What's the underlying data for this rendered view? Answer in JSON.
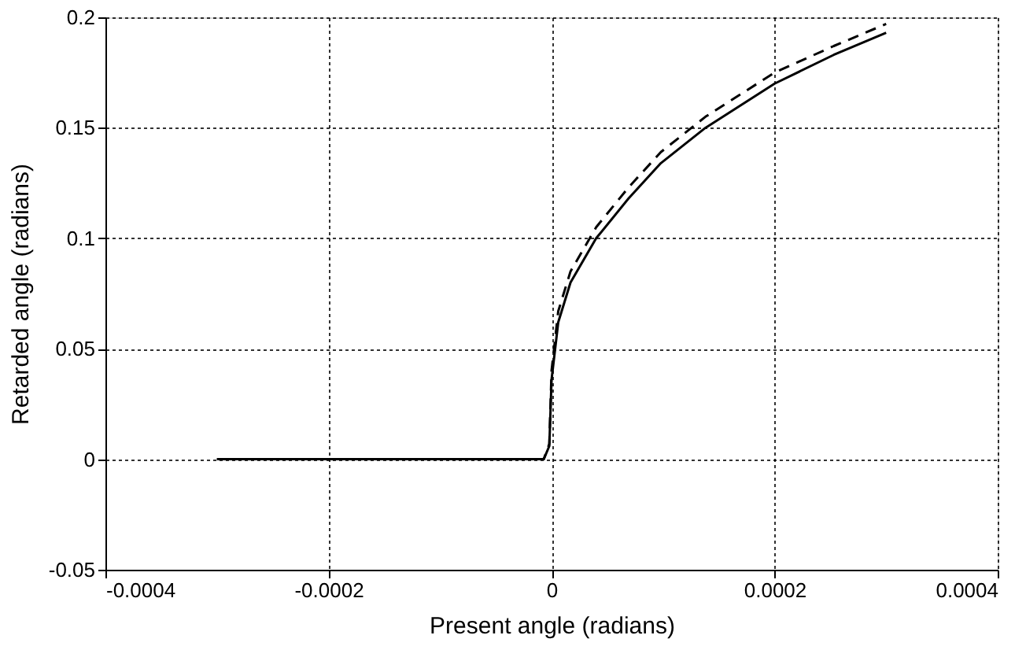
{
  "chart_data": {
    "type": "line",
    "xlabel": "Present angle (radians)",
    "ylabel": "Retarded angle (radians)",
    "xlim": [
      -0.0004,
      0.0004
    ],
    "xticks": [
      -0.0004,
      -0.0002,
      0,
      0.0002,
      0.0004
    ],
    "ylim": [
      -0.05,
      0.2
    ],
    "yticks": [
      -0.05,
      0,
      0.05,
      0.1,
      0.15,
      0.2
    ],
    "grid": true,
    "series": [
      {
        "color": "#000000",
        "line_style": "solid",
        "x": [
          -0.0003,
          -0.00015,
          -7e-06,
          -2e-06,
          0,
          6e-06,
          1.7e-05,
          4e-05,
          6.9e-05,
          9.8e-05,
          0.000138,
          0.0002,
          0.000253,
          0.0003
        ],
        "values": [
          0,
          0,
          0,
          0.006,
          0.036,
          0.062,
          0.08,
          0.1,
          0.118,
          0.134,
          0.15,
          0.17,
          0.183,
          0.193
        ]
      },
      {
        "color": "#000000",
        "line_style": "dashed",
        "x": [
          -0.0003,
          -0.00015,
          -7e-06,
          -2e-06,
          0,
          6e-06,
          1.7e-05,
          4e-05,
          6.9e-05,
          9.8e-05,
          0.000138,
          0.0002,
          0.000253,
          0.0003
        ],
        "values": [
          0,
          0,
          0,
          0.007,
          0.04,
          0.067,
          0.085,
          0.105,
          0.123,
          0.139,
          0.155,
          0.175,
          0.187,
          0.197
        ]
      }
    ]
  }
}
